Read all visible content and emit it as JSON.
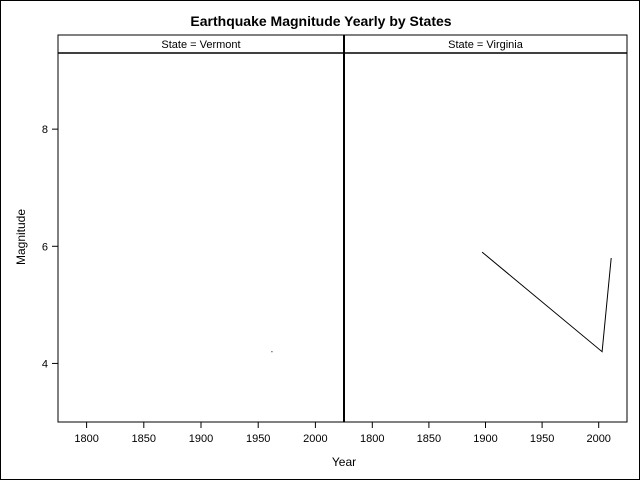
{
  "chart_data": {
    "type": "line",
    "title": "Earthquake Magnitude Yearly by States",
    "xlabel": "Year",
    "ylabel": "Magnitude",
    "xlim": [
      1775,
      2025
    ],
    "ylim": [
      3,
      9.3
    ],
    "xticks": [
      1800,
      1850,
      1900,
      1950,
      2000
    ],
    "yticks": [
      4,
      6,
      8
    ],
    "grid": false,
    "panels": [
      {
        "header": "State = Vermont",
        "series": [
          {
            "x": [
              1962
            ],
            "y": [
              4.2
            ]
          }
        ]
      },
      {
        "header": "State = Virginia",
        "series": [
          {
            "x": [
              1897,
              2003,
              2011
            ],
            "y": [
              5.9,
              4.2,
              5.8
            ]
          }
        ]
      }
    ]
  }
}
